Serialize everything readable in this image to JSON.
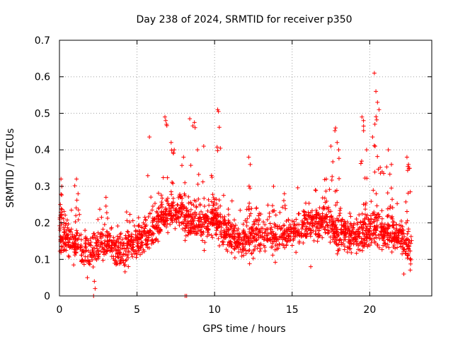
{
  "chart_data": {
    "type": "scatter",
    "title": "Day 238 of 2024, SRMTID for receiver p350",
    "xlabel": "GPS time / hours",
    "ylabel": "SRMTID / TECUs",
    "xlim": [
      0,
      24
    ],
    "ylim": [
      0,
      0.7
    ],
    "x_ticks": [
      0,
      5,
      10,
      15,
      20
    ],
    "x_tick_labels": [
      "0",
      "5",
      "10",
      "15",
      "20"
    ],
    "y_ticks": [
      0,
      0.1,
      0.2,
      0.3,
      0.4,
      0.5,
      0.6,
      0.7
    ],
    "y_tick_labels": [
      "0",
      "0.1",
      "0.2",
      "0.3",
      "0.4",
      "0.5",
      "0.6",
      "0.7"
    ],
    "grid": true,
    "marker": "+",
    "series": [
      {
        "name": "SRMTID",
        "color": "#ff0000",
        "baseline": [
          [
            0.0,
            0.17
          ],
          [
            1.0,
            0.14
          ],
          [
            2.0,
            0.12
          ],
          [
            3.0,
            0.15
          ],
          [
            4.0,
            0.12
          ],
          [
            5.0,
            0.15
          ],
          [
            6.0,
            0.18
          ],
          [
            7.0,
            0.23
          ],
          [
            8.0,
            0.22
          ],
          [
            9.0,
            0.19
          ],
          [
            10.0,
            0.21
          ],
          [
            11.0,
            0.16
          ],
          [
            12.0,
            0.15
          ],
          [
            13.0,
            0.17
          ],
          [
            14.0,
            0.16
          ],
          [
            15.0,
            0.18
          ],
          [
            16.0,
            0.19
          ],
          [
            17.0,
            0.21
          ],
          [
            18.0,
            0.17
          ],
          [
            19.0,
            0.16
          ],
          [
            20.0,
            0.18
          ],
          [
            21.0,
            0.17
          ],
          [
            22.0,
            0.16
          ],
          [
            22.7,
            0.12
          ]
        ],
        "spikes": [
          [
            0.1,
            0.32
          ],
          [
            0.15,
            0.3
          ],
          [
            1.1,
            0.32
          ],
          [
            1.2,
            0.28
          ],
          [
            3.0,
            0.27
          ],
          [
            5.8,
            0.435
          ],
          [
            6.8,
            0.49
          ],
          [
            6.9,
            0.47
          ],
          [
            7.2,
            0.42
          ],
          [
            7.4,
            0.4
          ],
          [
            8.0,
            0.38
          ],
          [
            8.4,
            0.485
          ],
          [
            8.7,
            0.475
          ],
          [
            8.9,
            0.4
          ],
          [
            9.3,
            0.41
          ],
          [
            10.2,
            0.51
          ],
          [
            10.25,
            0.505
          ],
          [
            9.8,
            0.33
          ],
          [
            12.2,
            0.38
          ],
          [
            12.3,
            0.36
          ],
          [
            13.8,
            0.3
          ],
          [
            14.5,
            0.28
          ],
          [
            16.5,
            0.29
          ],
          [
            17.2,
            0.32
          ],
          [
            17.5,
            0.41
          ],
          [
            17.8,
            0.46
          ],
          [
            17.9,
            0.42
          ],
          [
            18.0,
            0.4
          ],
          [
            19.5,
            0.49
          ],
          [
            19.6,
            0.48
          ],
          [
            19.8,
            0.4
          ],
          [
            20.3,
            0.61
          ],
          [
            20.4,
            0.56
          ],
          [
            20.5,
            0.53
          ],
          [
            20.6,
            0.51
          ],
          [
            20.35,
            0.41
          ],
          [
            20.8,
            0.34
          ],
          [
            21.2,
            0.4
          ],
          [
            21.4,
            0.36
          ],
          [
            22.4,
            0.38
          ],
          [
            22.5,
            0.36
          ]
        ],
        "low_points": [
          [
            2.2,
            0.0
          ],
          [
            2.3,
            0.02
          ],
          [
            2.25,
            0.04
          ],
          [
            8.1,
            0.0
          ],
          [
            8.2,
            0.0
          ],
          [
            16.2,
            0.08
          ],
          [
            22.2,
            0.06
          ],
          [
            1.8,
            0.05
          ]
        ]
      }
    ]
  }
}
